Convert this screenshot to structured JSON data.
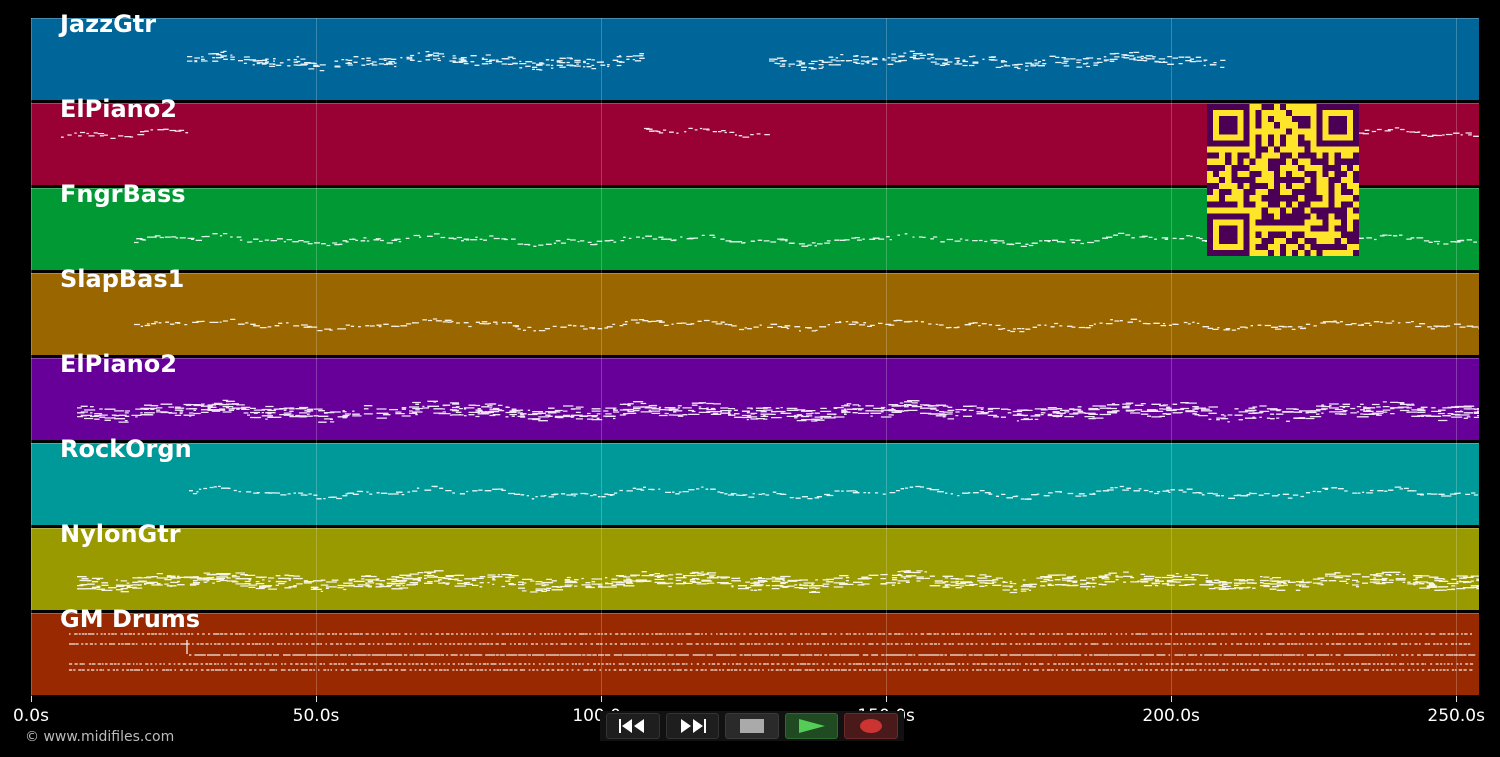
{
  "tracks": [
    {
      "name": "JazzGtr",
      "color": "#006699",
      "pattern": "double"
    },
    {
      "name": "ElPiano2",
      "color": "#990033",
      "pattern": "sparse"
    },
    {
      "name": "FngrBass",
      "color": "#009933",
      "pattern": "dash"
    },
    {
      "name": "SlapBas1",
      "color": "#996600",
      "pattern": "dash"
    },
    {
      "name": "ElPiano2",
      "color": "#660099",
      "pattern": "dense"
    },
    {
      "name": "RockOrgn",
      "color": "#009999",
      "pattern": "wave"
    },
    {
      "name": "NylonGtr",
      "color": "#999900",
      "pattern": "dense"
    },
    {
      "name": "GM Drums",
      "color": "#992900",
      "pattern": "drums"
    }
  ],
  "timeline": {
    "ticks": [
      {
        "value": 0,
        "label": "0.0s"
      },
      {
        "value": 50,
        "label": "50.0s"
      },
      {
        "value": 100,
        "label": "100.0s"
      },
      {
        "value": 150,
        "label": "150.0s"
      },
      {
        "value": 200,
        "label": "200.0s"
      },
      {
        "value": 250,
        "label": "250.0s"
      }
    ],
    "max": 254
  },
  "copyright": "© www.midifiles.com",
  "transport": {
    "rewind_icon": "rewind-icon",
    "forward_icon": "fast-forward-icon",
    "stop_icon": "stop-icon",
    "play_icon": "play-icon",
    "record_icon": "record-icon",
    "play_color": "#55cc55",
    "record_color": "#cc3333"
  },
  "qr_colors": {
    "fg": "#4b0055",
    "bg": "#ffe52a"
  }
}
